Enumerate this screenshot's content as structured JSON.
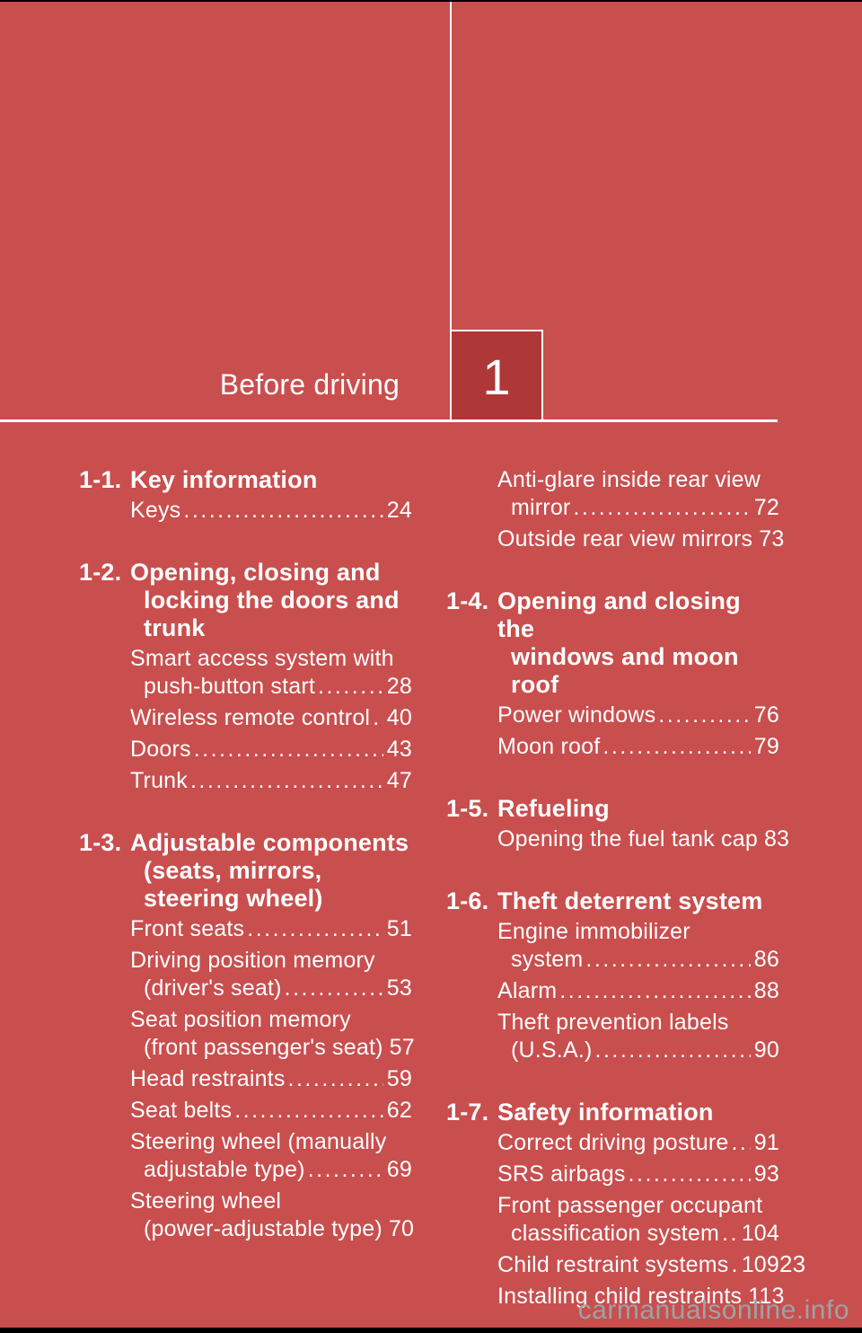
{
  "page": {
    "chapter_number": "1",
    "chapter_title": "Before driving",
    "page_number": "23",
    "watermark": "carmanualsonline.info"
  },
  "colors": {
    "background": "#C94E4E",
    "chapter_box": "#AE3737",
    "text": "#FFFFFF",
    "watermark": "#9BA3A6",
    "edge_bar": "#000000"
  },
  "toc": {
    "left": [
      {
        "num": "1-1.",
        "title_lines": [
          "Key information"
        ],
        "items": [
          {
            "lines": [
              "Keys"
            ],
            "page": "24"
          }
        ]
      },
      {
        "num": "1-2.",
        "title_lines": [
          "Opening, closing and",
          "locking the doors and",
          "trunk"
        ],
        "items": [
          {
            "lines": [
              "Smart access system with",
              "push-button start"
            ],
            "page": "28"
          },
          {
            "lines": [
              "Wireless remote control"
            ],
            "page": "40"
          },
          {
            "lines": [
              "Doors"
            ],
            "page": "43"
          },
          {
            "lines": [
              "Trunk"
            ],
            "page": "47"
          }
        ]
      },
      {
        "num": "1-3.",
        "title_lines": [
          "Adjustable components",
          "(seats, mirrors,",
          "steering wheel)"
        ],
        "items": [
          {
            "lines": [
              "Front seats"
            ],
            "page": "51"
          },
          {
            "lines": [
              "Driving position memory",
              "(driver's seat)"
            ],
            "page": "53"
          },
          {
            "lines": [
              "Seat position memory",
              "(front passenger's seat)"
            ],
            "page": "57"
          },
          {
            "lines": [
              "Head restraints"
            ],
            "page": "59"
          },
          {
            "lines": [
              "Seat belts"
            ],
            "page": "62"
          },
          {
            "lines": [
              "Steering wheel (manually",
              "adjustable type)"
            ],
            "page": "69"
          },
          {
            "lines": [
              "Steering wheel",
              "(power-adjustable type)"
            ],
            "page": "70"
          }
        ]
      }
    ],
    "right": [
      {
        "num": "",
        "title_lines": [],
        "items": [
          {
            "lines": [
              "Anti-glare inside rear view",
              "mirror"
            ],
            "page": "72"
          },
          {
            "lines": [
              "Outside rear view mirrors"
            ],
            "page": "73"
          }
        ]
      },
      {
        "num": "1-4.",
        "title_lines": [
          "Opening and closing the",
          "windows and moon roof"
        ],
        "items": [
          {
            "lines": [
              "Power windows"
            ],
            "page": "76"
          },
          {
            "lines": [
              "Moon roof"
            ],
            "page": "79"
          }
        ]
      },
      {
        "num": "1-5.",
        "title_lines": [
          "Refueling"
        ],
        "items": [
          {
            "lines": [
              "Opening the fuel tank cap"
            ],
            "page": "83"
          }
        ]
      },
      {
        "num": "1-6.",
        "title_lines": [
          "Theft deterrent system"
        ],
        "items": [
          {
            "lines": [
              "Engine immobilizer",
              "system"
            ],
            "page": "86"
          },
          {
            "lines": [
              "Alarm"
            ],
            "page": "88"
          },
          {
            "lines": [
              "Theft prevention labels",
              "(U.S.A.)"
            ],
            "page": "90"
          }
        ]
      },
      {
        "num": "1-7.",
        "title_lines": [
          "Safety information"
        ],
        "items": [
          {
            "lines": [
              "Correct driving posture"
            ],
            "page": "91"
          },
          {
            "lines": [
              "SRS airbags"
            ],
            "page": "93"
          },
          {
            "lines": [
              "Front passenger occupant",
              "classification system"
            ],
            "page": "104"
          },
          {
            "lines": [
              "Child restraint systems"
            ],
            "page": "109"
          },
          {
            "lines": [
              "Installing child restraints"
            ],
            "page": "113"
          }
        ]
      }
    ]
  }
}
